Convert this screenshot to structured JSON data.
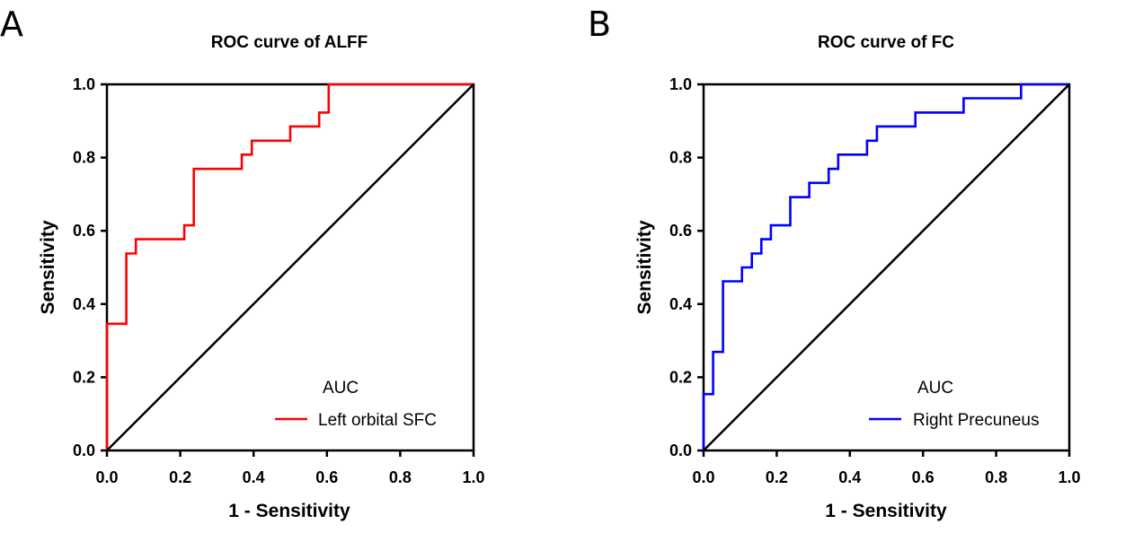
{
  "chart_data": [
    {
      "type": "line",
      "panel_label": "A",
      "title": "ROC curve of ALFF",
      "xlabel": "1 - Sensitivity",
      "ylabel": "Sensitivity",
      "xlim": [
        0,
        1
      ],
      "ylim": [
        0,
        1
      ],
      "x_ticks": [
        "0.0",
        "0.2",
        "0.4",
        "0.6",
        "0.8",
        "1.0"
      ],
      "y_ticks": [
        "0.0",
        "0.2",
        "0.4",
        "0.6",
        "0.8",
        "1.0"
      ],
      "legend_title": "AUC",
      "series": [
        {
          "name": "Left orbital SFC",
          "color": "#ff0000",
          "points": [
            [
              0,
              0
            ],
            [
              0,
              0.346
            ],
            [
              0.053,
              0.346
            ],
            [
              0.053,
              0.538
            ],
            [
              0.079,
              0.538
            ],
            [
              0.079,
              0.577
            ],
            [
              0.211,
              0.577
            ],
            [
              0.211,
              0.615
            ],
            [
              0.237,
              0.615
            ],
            [
              0.237,
              0.769
            ],
            [
              0.368,
              0.769
            ],
            [
              0.368,
              0.808
            ],
            [
              0.395,
              0.808
            ],
            [
              0.395,
              0.846
            ],
            [
              0.5,
              0.846
            ],
            [
              0.5,
              0.885
            ],
            [
              0.579,
              0.885
            ],
            [
              0.579,
              0.923
            ],
            [
              0.605,
              0.923
            ],
            [
              0.605,
              1
            ],
            [
              1,
              1
            ]
          ]
        },
        {
          "name": "reference",
          "color": "#000000",
          "points": [
            [
              0,
              0
            ],
            [
              1,
              1
            ]
          ]
        }
      ]
    },
    {
      "type": "line",
      "panel_label": "B",
      "title": "ROC curve of FC",
      "xlabel": "1 - Sensitivity",
      "ylabel": "Sensitivity",
      "xlim": [
        0,
        1
      ],
      "ylim": [
        0,
        1
      ],
      "x_ticks": [
        "0.0",
        "0.2",
        "0.4",
        "0.6",
        "0.8",
        "1.0"
      ],
      "y_ticks": [
        "0.0",
        "0.2",
        "0.4",
        "0.6",
        "0.8",
        "1.0"
      ],
      "legend_title": "AUC",
      "series": [
        {
          "name": "Right Precuneus",
          "color": "#0000ff",
          "points": [
            [
              0,
              0
            ],
            [
              0,
              0.154
            ],
            [
              0.026,
              0.154
            ],
            [
              0.026,
              0.269
            ],
            [
              0.053,
              0.269
            ],
            [
              0.053,
              0.462
            ],
            [
              0.105,
              0.462
            ],
            [
              0.105,
              0.5
            ],
            [
              0.132,
              0.5
            ],
            [
              0.132,
              0.538
            ],
            [
              0.158,
              0.538
            ],
            [
              0.158,
              0.577
            ],
            [
              0.184,
              0.577
            ],
            [
              0.184,
              0.615
            ],
            [
              0.237,
              0.615
            ],
            [
              0.237,
              0.692
            ],
            [
              0.289,
              0.692
            ],
            [
              0.289,
              0.731
            ],
            [
              0.342,
              0.731
            ],
            [
              0.342,
              0.769
            ],
            [
              0.368,
              0.769
            ],
            [
              0.368,
              0.808
            ],
            [
              0.447,
              0.808
            ],
            [
              0.447,
              0.846
            ],
            [
              0.474,
              0.846
            ],
            [
              0.474,
              0.885
            ],
            [
              0.579,
              0.885
            ],
            [
              0.579,
              0.923
            ],
            [
              0.711,
              0.923
            ],
            [
              0.711,
              0.962
            ],
            [
              0.868,
              0.962
            ],
            [
              0.868,
              1
            ],
            [
              1,
              1
            ]
          ]
        },
        {
          "name": "reference",
          "color": "#000000",
          "points": [
            [
              0,
              0
            ],
            [
              1,
              1
            ]
          ]
        }
      ]
    }
  ]
}
